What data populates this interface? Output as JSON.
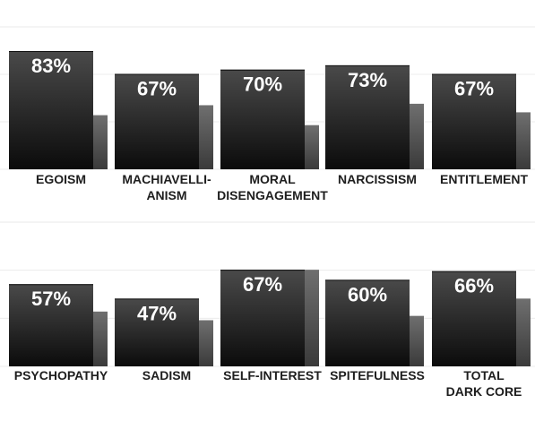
{
  "chart_data": [
    {
      "type": "bar",
      "categories": [
        "EGOISM",
        "MACHIAVELLI-\nANISM",
        "MORAL\nDISENGAGEMENT",
        "NARCISSISM",
        "ENTITLEMENT"
      ],
      "series": [
        {
          "values": [
            83,
            67,
            70,
            73,
            67
          ],
          "labels": [
            "83%",
            "67%",
            "70%",
            "73%",
            "67%"
          ],
          "color": "#2a2a2a"
        },
        {
          "values": [
            38,
            45,
            31,
            46,
            40
          ],
          "color": "#555555"
        }
      ],
      "ylim": [
        0,
        100
      ],
      "grid": true
    },
    {
      "type": "bar",
      "categories": [
        "PSYCHOPATHY",
        "SADISM",
        "SELF-INTEREST",
        "SPITEFULNESS",
        "TOTAL\nDARK CORE"
      ],
      "series": [
        {
          "values": [
            57,
            47,
            67,
            60,
            66
          ],
          "labels": [
            "57%",
            "47%",
            "67%",
            "60%",
            "66%"
          ],
          "color": "#2a2a2a"
        },
        {
          "values": [
            38,
            32,
            67,
            35,
            47
          ],
          "color": "#555555"
        }
      ],
      "ylim": [
        0,
        100
      ],
      "grid": true
    }
  ]
}
